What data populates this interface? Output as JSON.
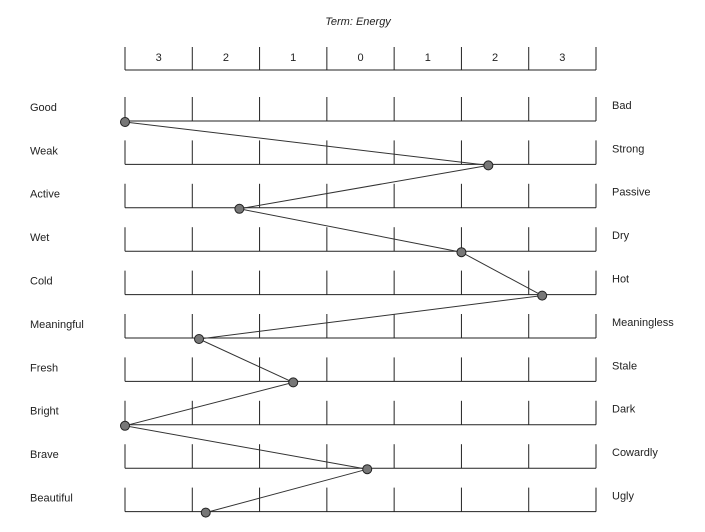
{
  "chart_data": {
    "type": "line",
    "title": "Term: Energy",
    "categories": [
      "Good",
      "Weak",
      "Active",
      "Wet",
      "Cold",
      "Meaningful",
      "Fresh",
      "Bright",
      "Brave",
      "Beautiful"
    ],
    "right_labels": [
      "Bad",
      "Strong",
      "Passive",
      "Dry",
      "Hot",
      "Meaningless",
      "Stale",
      "Dark",
      "Cowardly",
      "Ugly"
    ],
    "series": [
      {
        "color": "#777777",
        "values": [
          -3.5,
          1.9,
          -1.8,
          1.5,
          2.7,
          -2.4,
          -1.0,
          -3.5,
          0.1,
          -2.3
        ]
      }
    ],
    "xlim": [
      -3.5,
      3.5
    ],
    "xticks": [
      {
        "value": -3,
        "label": "3"
      },
      {
        "value": -2,
        "label": "2"
      },
      {
        "value": -1,
        "label": "1"
      },
      0,
      1,
      2,
      3
    ]
  }
}
